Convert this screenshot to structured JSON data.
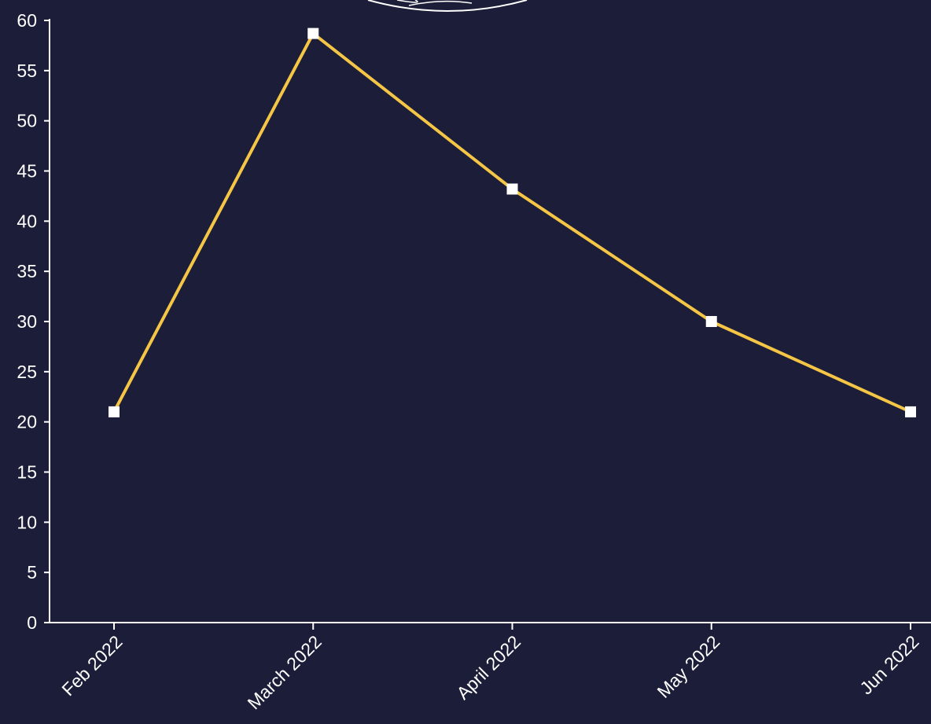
{
  "chart_data": {
    "type": "line",
    "title": "",
    "xlabel": "",
    "ylabel": "",
    "categories": [
      "Feb 2022",
      "March 2022",
      "April 2022",
      "May 2022",
      "Jun 2022"
    ],
    "series": [
      {
        "values": [
          21,
          58.7,
          43.2,
          30,
          21
        ],
        "line_color": "#f5c545",
        "marker": "square",
        "marker_color": "#ffffff"
      }
    ],
    "ylim": [
      0,
      60
    ],
    "yticks": [
      0,
      5,
      10,
      15,
      20,
      25,
      30,
      35,
      40,
      45,
      50,
      55,
      60
    ],
    "grid": false,
    "legend": "none",
    "background_color": "#1b1d39",
    "axis_color": "#ffffff",
    "tick_label_color": "#ffffff"
  }
}
